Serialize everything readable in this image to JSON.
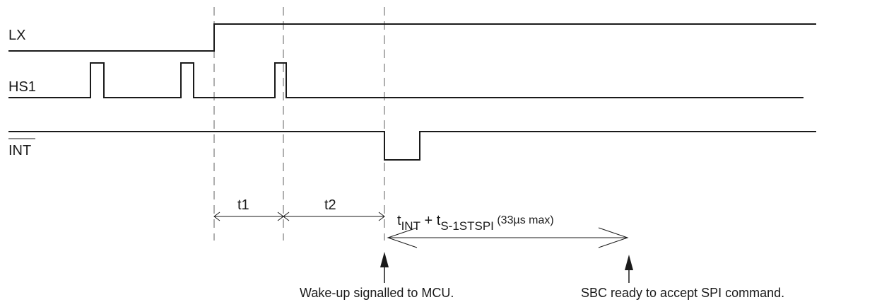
{
  "signals": {
    "lx": "LX",
    "hs1": "HS1",
    "int": "INT"
  },
  "timings": {
    "t1": "t1",
    "t2": "t2",
    "combined": {
      "main_a": "t",
      "sub_a": "INT",
      "plus": " + t",
      "sub_b": "S-1STSPI",
      "suffix": " (33µs max)"
    }
  },
  "annotations": {
    "wake_up": "Wake-up signalled to MCU.",
    "sbc_ready": "SBC ready to accept SPI command."
  }
}
